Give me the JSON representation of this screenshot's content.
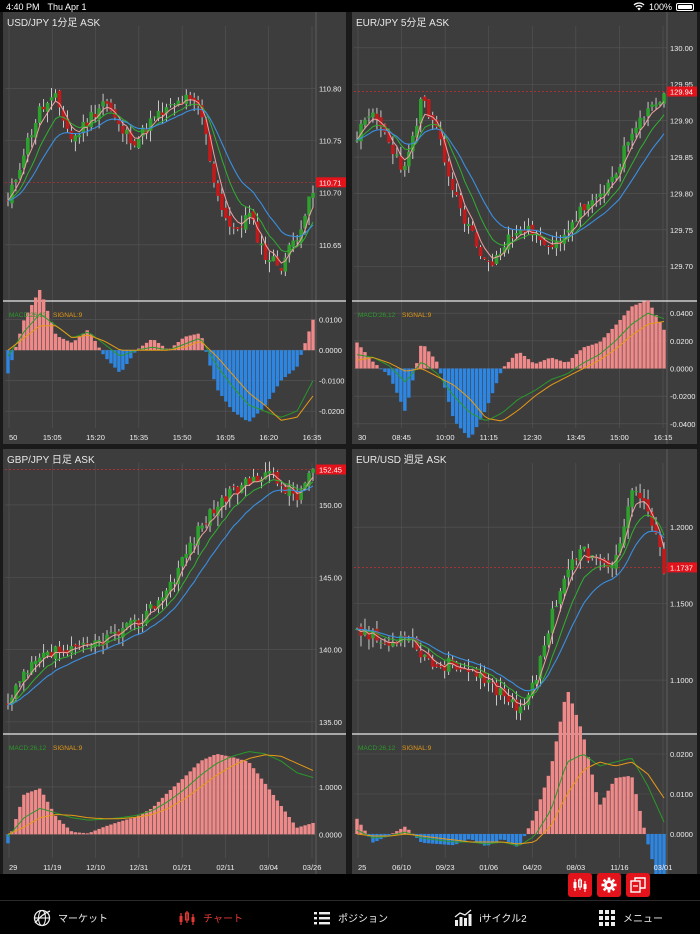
{
  "status": {
    "time": "4:40 PM",
    "date": "Thu Apr 1",
    "battery": "100%",
    "battery_level": 1.0
  },
  "colors": {
    "up": "#2ea02e",
    "down": "#c21a1a",
    "ma_fast": "#f0a0a0",
    "ma_mid": "#30b030",
    "ma_slow": "#3a8fe0",
    "macd": "#2a9a2a",
    "signal": "#e69a16",
    "hist_pos": "#ef8a8a",
    "hist_neg": "#2f86e0",
    "accent": "#e2131b"
  },
  "panels": [
    {
      "title": "USD/JPY 1分足 ASK",
      "price_ticks": [
        "110.80",
        "110.75",
        "110.70",
        "110.65"
      ],
      "price_tick_values": [
        110.8,
        110.75,
        110.7,
        110.65
      ],
      "price_range": [
        110.598,
        110.86
      ],
      "current_price": "110.71",
      "current_value": 110.71,
      "macd_label": "MACD:26,12",
      "signal_label": "SIGNAL:9",
      "macd_ticks": [
        "0.0100",
        "0.0000",
        "-0.0100",
        "-0.0200"
      ],
      "macd_tick_values": [
        0.01,
        0,
        -0.01,
        -0.02
      ],
      "macd_range": [
        -0.0255,
        0.0135
      ],
      "x_labels": [
        "50",
        "15:05",
        "15:20",
        "15:35",
        "15:50",
        "16:05",
        "16:20",
        "16:35"
      ],
      "chart_data": {
        "type": "candlestick",
        "anchors": [
          110.69,
          110.74,
          110.78,
          110.79,
          110.75,
          110.77,
          110.79,
          110.76,
          110.75,
          110.77,
          110.78,
          110.79,
          110.78,
          110.7,
          110.66,
          110.68,
          110.64,
          110.63,
          110.66,
          110.7
        ],
        "macd_anchors": [
          -0.002,
          0.006,
          0.012,
          0.008,
          0.004,
          0.006,
          0.002,
          -0.002,
          0.0,
          0.001,
          0.0,
          0.002,
          0.004,
          -0.005,
          -0.012,
          -0.018,
          -0.02,
          -0.022,
          -0.02,
          -0.01
        ],
        "signal_anchors": [
          0.0,
          0.004,
          0.008,
          0.008,
          0.004,
          0.005,
          0.003,
          0.0,
          0.0,
          0.0,
          0.0,
          0.001,
          0.003,
          -0.002,
          -0.008,
          -0.014,
          -0.018,
          -0.023,
          -0.022,
          -0.015
        ],
        "seed": 11
      }
    },
    {
      "title": "EUR/JPY 5分足 ASK",
      "price_ticks": [
        "130.00",
        "129.95",
        "129.90",
        "129.85",
        "129.80",
        "129.75",
        "129.70"
      ],
      "price_tick_values": [
        130.0,
        129.95,
        129.9,
        129.85,
        129.8,
        129.75,
        129.7
      ],
      "price_range": [
        129.655,
        130.03
      ],
      "current_price": "129.94",
      "current_value": 129.94,
      "macd_label": "MACD:26,12",
      "signal_label": "SIGNAL:9",
      "macd_ticks": [
        "0.0400",
        "0.0200",
        "0.0000",
        "-0.0200",
        "-0.0400"
      ],
      "macd_tick_values": [
        0.04,
        0.02,
        0,
        -0.02,
        -0.04
      ],
      "macd_range": [
        -0.043,
        0.043
      ],
      "x_labels": [
        "30",
        "08:45",
        "10:00",
        "11:15",
        "12:30",
        "13:45",
        "15:00",
        "16:15"
      ],
      "chart_data": {
        "type": "candlestick",
        "anchors": [
          129.88,
          129.91,
          129.87,
          129.83,
          129.93,
          129.88,
          129.8,
          129.75,
          129.7,
          129.72,
          129.76,
          129.74,
          129.72,
          129.75,
          129.78,
          129.79,
          129.83,
          129.88,
          129.91,
          129.94
        ],
        "macd_anchors": [
          0.01,
          0.008,
          0.002,
          -0.01,
          0.005,
          -0.004,
          -0.02,
          -0.032,
          -0.038,
          -0.032,
          -0.022,
          -0.016,
          -0.008,
          -0.004,
          0.004,
          0.01,
          0.02,
          0.032,
          0.04,
          0.036
        ],
        "signal_anchors": [
          0.006,
          0.008,
          0.004,
          -0.002,
          0.0,
          -0.006,
          -0.012,
          -0.022,
          -0.036,
          -0.038,
          -0.03,
          -0.02,
          -0.012,
          -0.006,
          0.0,
          0.006,
          0.014,
          0.024,
          0.032,
          0.034
        ],
        "seed": 23
      }
    },
    {
      "title": "GBP/JPY 日足 ASK",
      "price_ticks": [
        "150.00",
        "145.00",
        "140.00",
        "135.00"
      ],
      "price_tick_values": [
        150.0,
        145.0,
        140.0,
        135.0
      ],
      "price_range": [
        134.3,
        152.9
      ],
      "current_price": "152.45",
      "current_value": 152.45,
      "macd_label": "MACD:26,12",
      "signal_label": "SIGNAL:9",
      "macd_ticks": [
        "1.0000",
        "0.0000"
      ],
      "macd_tick_values": [
        1.0,
        0.0
      ],
      "macd_range": [
        -0.5,
        1.95
      ],
      "x_labels": [
        "29",
        "11/19",
        "12/10",
        "12/31",
        "01/21",
        "02/11",
        "03/04",
        "03/26"
      ],
      "chart_data": {
        "type": "candlestick",
        "anchors": [
          136.0,
          138.2,
          139.3,
          139.9,
          139.8,
          140.2,
          140.8,
          141.2,
          141.8,
          143.0,
          144.3,
          146.5,
          148.5,
          150.0,
          150.8,
          151.6,
          152.4,
          151.4,
          150.5,
          152.45
        ],
        "macd_anchors": [
          -0.05,
          0.35,
          0.55,
          0.45,
          0.35,
          0.3,
          0.32,
          0.35,
          0.4,
          0.5,
          0.7,
          0.95,
          1.25,
          1.5,
          1.65,
          1.75,
          1.7,
          1.55,
          1.3,
          1.2
        ],
        "signal_anchors": [
          0.0,
          0.15,
          0.35,
          0.42,
          0.4,
          0.35,
          0.33,
          0.33,
          0.36,
          0.42,
          0.55,
          0.75,
          1.0,
          1.25,
          1.45,
          1.6,
          1.68,
          1.65,
          1.5,
          1.35
        ],
        "seed": 37
      }
    },
    {
      "title": "EUR/USD 週足 ASK",
      "price_ticks": [
        "1.2000",
        "1.1500",
        "1.1000"
      ],
      "price_tick_values": [
        1.2,
        1.15,
        1.1
      ],
      "price_range": [
        1.066,
        1.242
      ],
      "current_price": "1.1737",
      "current_value": 1.1737,
      "macd_label": "MACD:26,12",
      "signal_label": "SIGNAL:9",
      "macd_ticks": [
        "0.0200",
        "0.0100",
        "0.0000"
      ],
      "macd_tick_values": [
        0.02,
        0.01,
        0.0
      ],
      "macd_range": [
        -0.006,
        0.023
      ],
      "x_labels": [
        "25",
        "06/10",
        "09/23",
        "01/06",
        "04/20",
        "08/03",
        "11/16",
        "03/01"
      ],
      "chart_data": {
        "type": "candlestick",
        "anchors": [
          1.135,
          1.128,
          1.122,
          1.132,
          1.118,
          1.108,
          1.112,
          1.104,
          1.098,
          1.092,
          1.082,
          1.096,
          1.142,
          1.172,
          1.185,
          1.175,
          1.178,
          1.222,
          1.212,
          1.1737
        ],
        "macd_anchors": [
          0.001,
          -0.001,
          -0.0005,
          0.0005,
          -0.001,
          -0.0015,
          -0.002,
          -0.002,
          -0.0025,
          -0.002,
          -0.003,
          -0.0005,
          0.006,
          0.018,
          0.02,
          0.017,
          0.018,
          0.019,
          0.012,
          0.003
        ],
        "signal_anchors": [
          0.0,
          -0.0005,
          -0.0005,
          0.0,
          -0.0005,
          -0.001,
          -0.0015,
          -0.002,
          -0.002,
          -0.002,
          -0.0025,
          -0.002,
          0.002,
          0.01,
          0.016,
          0.018,
          0.017,
          0.018,
          0.015,
          0.009
        ],
        "seed": 53
      }
    }
  ],
  "tabs": [
    {
      "label": "マーケット",
      "icon": "globe-icon",
      "active": false
    },
    {
      "label": "チャート",
      "icon": "candlestick-icon",
      "active": true
    },
    {
      "label": "ポジション",
      "icon": "list-icon",
      "active": false
    },
    {
      "label": "iサイクル2",
      "icon": "bar-chart-icon",
      "active": false
    },
    {
      "label": "メニュー",
      "icon": "grid-icon",
      "active": false
    }
  ],
  "toolbar": {
    "candle_type": "candlestick-type-icon",
    "settings": "gear-icon",
    "layout": "layout-switch-icon"
  }
}
